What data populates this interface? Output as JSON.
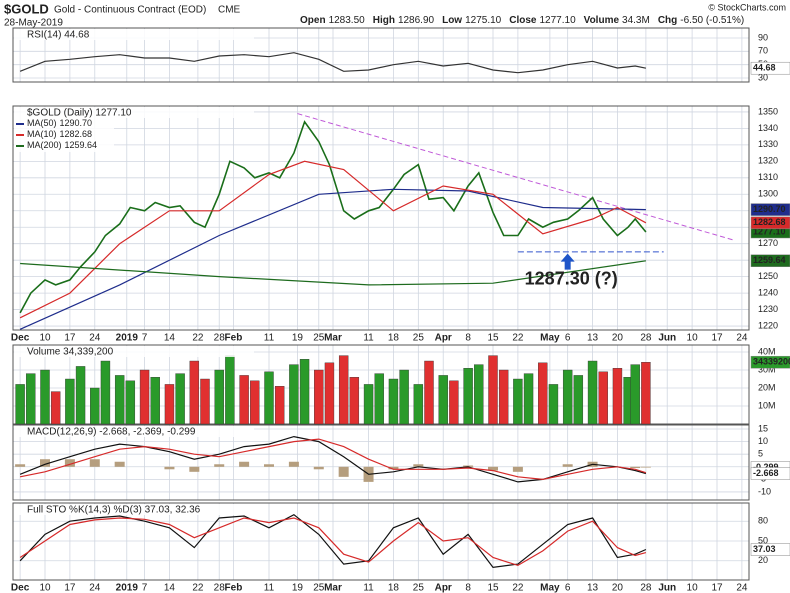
{
  "header": {
    "symbol": "$GOLD",
    "name": "Gold - Continuous Contract (EOD)",
    "exchange": "CME",
    "date": "28-May-2019",
    "credit": "© StockCharts.com",
    "quote": [
      {
        "label": "Open",
        "value": "1283.50"
      },
      {
        "label": "High",
        "value": "1286.90"
      },
      {
        "label": "Low",
        "value": "1275.10"
      },
      {
        "label": "Close",
        "value": "1277.10"
      },
      {
        "label": "Volume",
        "value": "34.3M"
      },
      {
        "label": "Chg",
        "value": "-6.50 (-0.51%)"
      }
    ]
  },
  "chart_data": [
    {
      "type": "line",
      "title": "RSI(14) 44.68",
      "ylim": [
        24,
        105
      ],
      "yticks": [
        30,
        50,
        70,
        90
      ],
      "grid": true,
      "x": [
        2,
        9,
        16,
        23,
        30,
        37,
        44,
        51,
        58,
        65,
        72,
        79,
        86,
        93,
        100,
        107,
        114,
        121,
        128,
        135,
        142,
        149,
        156,
        163,
        170,
        175,
        178
      ],
      "series": [
        {
          "color": "#333333",
          "last_label": "44.68",
          "values": [
            40,
            55,
            58,
            62,
            65,
            60,
            60,
            55,
            63,
            65,
            62,
            68,
            58,
            40,
            42,
            50,
            55,
            48,
            52,
            42,
            38,
            42,
            50,
            55,
            45,
            48,
            44.68
          ]
        }
      ]
    },
    {
      "type": "line",
      "title": "$GOLD (Daily) 1277.10",
      "ylim": [
        1217.6,
        1353.6
      ],
      "xlim": [
        0,
        207
      ],
      "yticks": [
        1220,
        1230,
        1240,
        1250,
        1260,
        1270,
        1280,
        1290,
        1300,
        1310,
        1320,
        1330,
        1340,
        1350
      ],
      "grid": true,
      "xticks": [
        {
          "value": 2,
          "label": "Dec"
        },
        {
          "value": 9,
          "label": "10"
        },
        {
          "value": 16,
          "label": "17"
        },
        {
          "value": 23,
          "label": "24"
        },
        {
          "value": 32,
          "label": "2019"
        },
        {
          "value": 37,
          "label": "7"
        },
        {
          "value": 44,
          "label": "14"
        },
        {
          "value": 52,
          "label": "22"
        },
        {
          "value": 58,
          "label": "28"
        },
        {
          "value": 62,
          "label": "Feb"
        },
        {
          "value": 72,
          "label": "11"
        },
        {
          "value": 80,
          "label": "19"
        },
        {
          "value": 86,
          "label": "25"
        },
        {
          "value": 90,
          "label": "Mar"
        },
        {
          "value": 100,
          "label": "11"
        },
        {
          "value": 107,
          "label": "18"
        },
        {
          "value": 114,
          "label": "25"
        },
        {
          "value": 121,
          "label": "Apr"
        },
        {
          "value": 128,
          "label": "8"
        },
        {
          "value": 135,
          "label": "15"
        },
        {
          "value": 142,
          "label": "22"
        },
        {
          "value": 151,
          "label": "May"
        },
        {
          "value": 156,
          "label": "6"
        },
        {
          "value": 163,
          "label": "13"
        },
        {
          "value": 170,
          "label": "20"
        },
        {
          "value": 178,
          "label": "28"
        },
        {
          "value": 184,
          "label": "Jun"
        },
        {
          "value": 191,
          "label": "10"
        },
        {
          "value": 198,
          "label": "17"
        },
        {
          "value": 205,
          "label": "24"
        }
      ],
      "x": [
        2,
        5,
        9,
        12,
        16,
        19,
        23,
        26,
        30,
        33,
        37,
        40,
        44,
        47,
        51,
        54,
        58,
        61,
        65,
        68,
        72,
        75,
        79,
        82,
        86,
        89,
        93,
        96,
        100,
        103,
        107,
        110,
        114,
        117,
        121,
        124,
        128,
        131,
        135,
        138,
        142,
        145,
        149,
        152,
        156,
        159,
        163,
        166,
        170,
        173,
        175,
        178
      ],
      "series": [
        {
          "color": "#1a6e1a",
          "last_label": "1277.10",
          "width": 1.6,
          "values": [
            1228,
            1240,
            1248,
            1245,
            1248,
            1256,
            1265,
            1275,
            1282,
            1292,
            1290,
            1295,
            1292,
            1293,
            1283,
            1280,
            1300,
            1320,
            1316,
            1310,
            1313,
            1310,
            1325,
            1344,
            1332,
            1318,
            1290,
            1285,
            1290,
            1292,
            1303,
            1312,
            1318,
            1297,
            1298,
            1290,
            1305,
            1313,
            1289,
            1275,
            1275,
            1285,
            1280,
            1283,
            1285,
            1290,
            1298,
            1285,
            1275,
            1280,
            1285,
            1277.1
          ]
        },
        {
          "name": "MA(50)",
          "color": "#1f2d8c",
          "last_label": "1290.70",
          "x": [
            2,
            30,
            58,
            86,
            107,
            128,
            149,
            178
          ],
          "values": [
            1218,
            1245,
            1275,
            1300,
            1303,
            1302,
            1292,
            1290.7
          ]
        },
        {
          "name": "MA(10)",
          "color": "#d62a2a",
          "last_label": "1282.68",
          "x": [
            2,
            16,
            30,
            44,
            58,
            72,
            82,
            93,
            107,
            121,
            135,
            149,
            163,
            170,
            178
          ],
          "values": [
            1225,
            1240,
            1270,
            1290,
            1290,
            1312,
            1320,
            1315,
            1290,
            1305,
            1300,
            1276,
            1285,
            1292,
            1282.68
          ]
        },
        {
          "name": "MA(200)",
          "color": "#1e6b1e",
          "last_label": "1259.64",
          "x": [
            2,
            58,
            100,
            135,
            178
          ],
          "values": [
            1258,
            1250,
            1245,
            1246,
            1259.64
          ]
        }
      ],
      "trendline": {
        "color": "#c05ad8",
        "x": [
          80,
          203
        ],
        "values": [
          1349,
          1272
        ]
      },
      "support": {
        "color": "#3355cc",
        "x": [
          142,
          183
        ],
        "values": [
          1265,
          1265
        ]
      },
      "annotation": {
        "text": "1287.30 (?)",
        "color": "#1f55c8",
        "arrow_x": 156,
        "arrow_value": 1264
      }
    },
    {
      "type": "bar",
      "title": "Volume 34,339,200",
      "ylim": [
        0,
        43.9
      ],
      "grid": true,
      "up_color": "#2a9a2a",
      "down_color": "#e03030",
      "yticks": [
        {
          "value": 10,
          "label": "10M"
        },
        {
          "value": 20,
          "label": "20M"
        },
        {
          "value": 30,
          "label": "30M"
        },
        {
          "value": 40,
          "label": "40M"
        }
      ],
      "series": [
        {
          "color": "#2a9a2a",
          "last_label": "34339200",
          "values": [
            22,
            28,
            30,
            18,
            25,
            32,
            20,
            35,
            27,
            24,
            30,
            26,
            22,
            28,
            35,
            25,
            30,
            38,
            27,
            24,
            29,
            21,
            33,
            36,
            30,
            34,
            38,
            26,
            22,
            28,
            25,
            30,
            22,
            35,
            27,
            24,
            31,
            33,
            38,
            30,
            25,
            28,
            34,
            22,
            30,
            27,
            35,
            29,
            31,
            26,
            33,
            34.3392
          ]
        }
      ]
    },
    {
      "type": "line",
      "title": "MACD(12,26,9) -2.668, -2.369, -0.299",
      "ylim": [
        -13.2,
        16.6
      ],
      "yticks": [
        -10,
        -5,
        0,
        5,
        10,
        15
      ],
      "grid": true,
      "x": [
        2,
        9,
        16,
        23,
        30,
        37,
        44,
        51,
        58,
        65,
        72,
        79,
        86,
        93,
        100,
        107,
        114,
        121,
        128,
        135,
        142,
        149,
        156,
        163,
        170,
        175,
        178
      ],
      "series": [
        {
          "kind": "bar",
          "color": "#b59e7e",
          "last_label": "-0.299",
          "values": [
            1,
            3,
            3,
            3,
            2,
            0,
            -1,
            -2,
            1,
            2,
            1,
            2,
            -1,
            -4,
            -6,
            -1,
            1,
            0,
            0.5,
            -1.5,
            -2,
            0,
            1,
            2,
            0,
            -0.5,
            -0.299
          ]
        },
        {
          "color": "#111111",
          "last_label": "-2.668",
          "values": [
            -3,
            1,
            4,
            7,
            9,
            8,
            6,
            3,
            5,
            8,
            9,
            12,
            10,
            4,
            -3,
            -2,
            0,
            -1,
            0,
            -3,
            -6,
            -5,
            -2,
            1,
            0,
            -1.5,
            -2.668
          ]
        },
        {
          "color": "#d62a2a",
          "values": [
            -4,
            -2,
            1,
            4,
            7,
            8,
            7,
            5,
            4,
            6,
            8,
            10,
            11,
            8,
            3,
            -1,
            -1,
            -1,
            -0.5,
            -1.5,
            -4,
            -5,
            -3,
            -1,
            0,
            -1,
            -2.369
          ]
        }
      ]
    },
    {
      "type": "line",
      "title": "Full STO %K(14,3) %D(3) 37.03, 32.36",
      "ylim": [
        -9.2,
        107.7
      ],
      "yticks": [
        20,
        50,
        80
      ],
      "grid": true,
      "x": [
        2,
        9,
        16,
        23,
        30,
        37,
        44,
        51,
        58,
        65,
        72,
        79,
        86,
        93,
        100,
        107,
        114,
        121,
        128,
        135,
        142,
        149,
        156,
        163,
        170,
        175,
        178
      ],
      "series": [
        {
          "color": "#111111",
          "last_label": "37.03",
          "values": [
            20,
            60,
            80,
            85,
            88,
            80,
            70,
            40,
            85,
            88,
            70,
            90,
            60,
            15,
            20,
            70,
            85,
            30,
            60,
            10,
            15,
            45,
            75,
            85,
            25,
            30,
            37.03
          ]
        },
        {
          "color": "#d62a2a",
          "values": [
            25,
            50,
            75,
            82,
            85,
            83,
            75,
            55,
            70,
            85,
            78,
            85,
            70,
            30,
            18,
            50,
            78,
            50,
            55,
            25,
            13,
            35,
            65,
            80,
            40,
            28,
            32.36
          ]
        }
      ]
    }
  ]
}
